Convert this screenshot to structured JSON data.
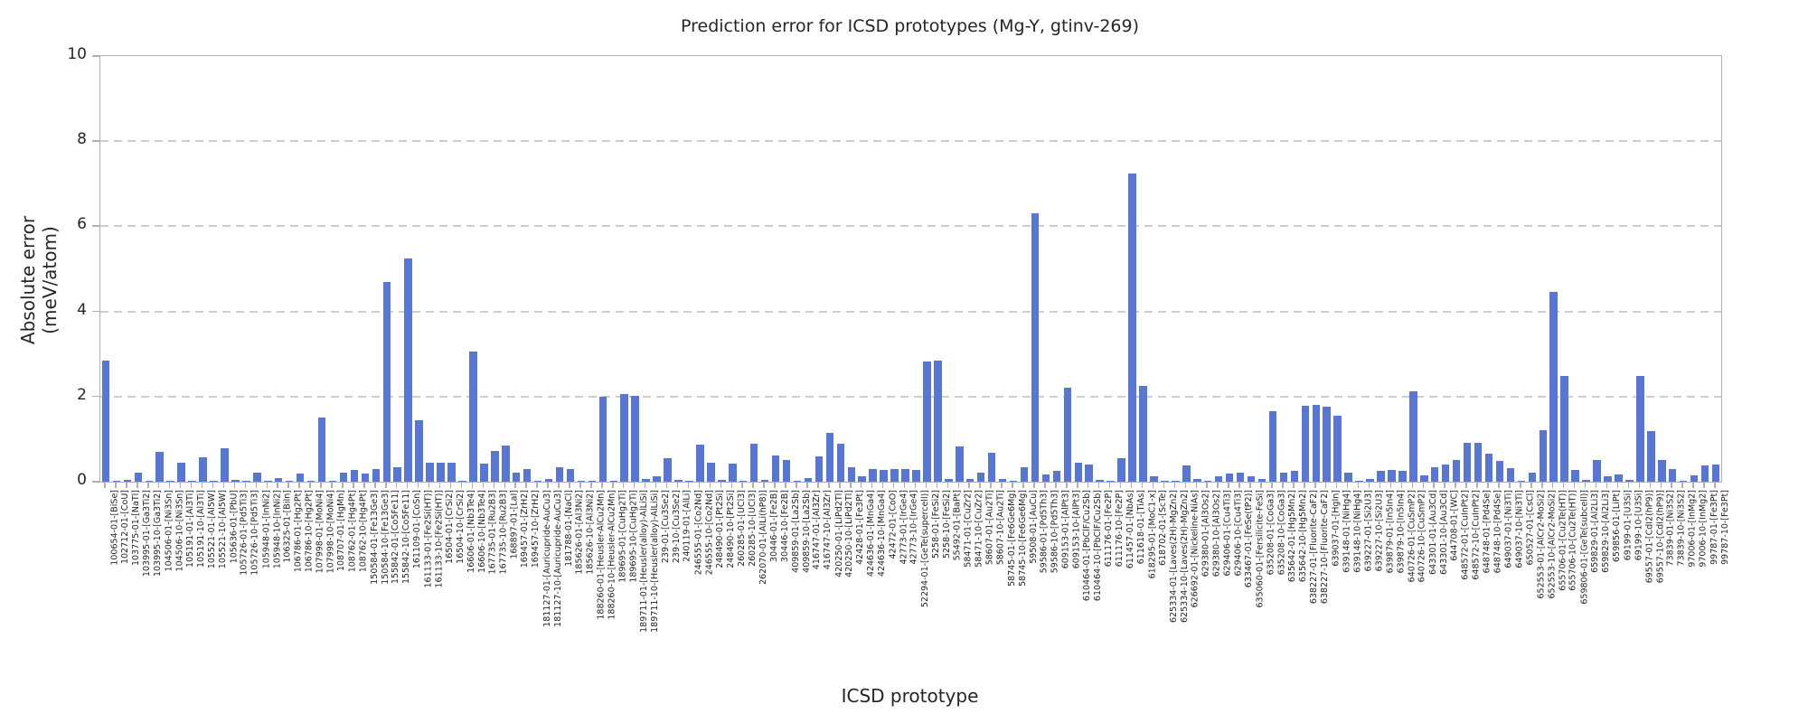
{
  "chart_data": {
    "type": "bar",
    "title": "Prediction error for ICSD prototypes (Mg-Y, gtinv-269)",
    "xlabel": "ICSD prototype",
    "ylabel": "Absolute error (meV/atom)",
    "ylim": [
      0,
      10
    ],
    "yticks": [
      0,
      2,
      4,
      6,
      8,
      10
    ],
    "grid": "dashed horizontal gridlines at y ticks",
    "legend_position": "none",
    "bar_color": "#5876d4",
    "grid_color": "#cdcdcd",
    "spine_color": "#b0b0b0",
    "categories": [
      "100654-01-[BiSe]",
      "102712-01-[CoU]",
      "103775-01-[NaTl]",
      "103995-01-[Ga3Ti2]",
      "103995-10-[Ga3Ti2]",
      "104506-01-[Ni3Sn]",
      "104506-10-[Ni3Sn]",
      "105191-01-[Al3Ti]",
      "105191-10-[Al3Ti]",
      "105521-01-[Al5W]",
      "105521-10-[Al5W]",
      "105636-01-[PbU]",
      "105726-01-[Pd5Ti3]",
      "105726-10-[Pd5Ti3]",
      "105948-01-[InNi2]",
      "105948-10-[InNi2]",
      "106325-01-[BiIn]",
      "106786-01-[Hg2Pt]",
      "106786-10-[Hg2Pt]",
      "107998-01-[MoNi4]",
      "107998-10-[MoNi4]",
      "108707-01-[HgMn]",
      "108762-01-[Hg4Pt]",
      "108762-10-[Hg4Pt]",
      "150584-01-[Fe13Ge3]",
      "150584-10-[Fe13Ge3]",
      "155842-01-[Co5Fe11]",
      "155842-10-[Co5Fe11]",
      "161109-01-[CoSn]",
      "161133-01-[Fe2Si(HT)]",
      "161133-10-[Fe2Si(HT)]",
      "16504-01-[CrSi2]",
      "16504-10-[CrSi2]",
      "16606-01-[Nb3Te4]",
      "16606-10-[Nb3Te4]",
      "167735-01-[Ru2B3]",
      "167735-10-[Ru2B3]",
      "168897-01-[LaI]",
      "169457-01-[ZrH2]",
      "169457-10-[ZrH2]",
      "181127-01-[Auricupride-AuCu3]",
      "181127-10-[Auricupride-AuCu3]",
      "181788-01-[NaCl]",
      "185626-01-[Al3Ni2]",
      "185626-10-[Al3Ni2]",
      "188260-01-[Heusler-AlCu2Mn]",
      "188260-10-[Heusler-AlCu2Mn]",
      "189695-01-[CuHg2Ti]",
      "189695-10-[CuHg2Ti]",
      "189711-01-[Heusler(alloy)-AlLiSi]",
      "189711-10-[Heusler(alloy)-AlLiSi]",
      "239-01-[Cu3Se2]",
      "239-10-[Cu3Se2]",
      "240119-01-[AlLi]",
      "246555-01-[Co2Nd]",
      "246555-10-[Co2Nd]",
      "248490-01-[Pt2Si]",
      "248490-10-[Pt2Si]",
      "260285-01-[UCl3]",
      "260285-10-[UCl3]",
      "262070-01-[AlLi(hP8)]",
      "30446-01-[Fe2B]",
      "30446-10-[Fe2B]",
      "409859-01-[La2Sb]",
      "409859-10-[La2Sb]",
      "416747-01-[Al3Zr]",
      "416747-10-[Al3Zr]",
      "420250-01-[LiPd2Tl]",
      "420250-10-[LiPd2Tl]",
      "42428-01-[Fe3Pt]",
      "424636-01-[MnGa4]",
      "424636-10-[MnGa4]",
      "42472-01-[CoO]",
      "42773-01-[IrGe4]",
      "42773-10-[IrGe4]",
      "52294-01-[GeTe(supercell)]",
      "5258-01-[FeSi2]",
      "5258-10-[FeSi2]",
      "55492-01-[BaPt]",
      "58471-01-[CuZr2]",
      "58471-10-[CuZr2]",
      "58607-01-[Au2Ti]",
      "58607-10-[Au2Ti]",
      "58745-01-[Fe6Ge6Mg]",
      "58745-10-[Fe6Ge6Mg]",
      "59508-01-[AuCu]",
      "59586-01-[Pd5Th3]",
      "59586-10-[Pd5Th3]",
      "609153-01-[AlPt3]",
      "609153-10-[AlPt3]",
      "610464-01-[PbClF/Cu2Sb]",
      "610464-10-[PbClF/Cu2Sb]",
      "611176-01-[Fe2P]",
      "611176-10-[Fe2P]",
      "611457-01-[NbAs]",
      "611618-01-[TiAs]",
      "618295-01-[MoC1-x]",
      "618702-01-[ScTe]",
      "625334-01-[Laves(2H)-MgZn2]",
      "625334-10-[Laves(2H)-MgZn2]",
      "626692-01-[Nickeline-NiAs]",
      "629380-01-[Al3Os2]",
      "629380-10-[Al3Os2]",
      "629406-01-[Cu4Ti3]",
      "629406-10-[Cu4Ti3]",
      "633467-01-[FeSe(tP2)]",
      "635060-01-[Fersilicite-FeSi]",
      "635208-01-[CoGa3]",
      "635208-10-[CoGa3]",
      "635642-01-[Hg5Mn2]",
      "635642-10-[Hg5Mn2]",
      "638227-01-[Fluorite-CaF2]",
      "638227-10-[Fluorite-CaF2]",
      "639037-01-[HgIn]",
      "639148-01-[NiHg4]",
      "639148-10-[NiHg4]",
      "639227-01-[Si2U3]",
      "639227-10-[Si2U3]",
      "639879-01-[In5In4]",
      "639879-10-[In5In4]",
      "640726-01-[CuSmP2]",
      "640726-10-[CuSmP2]",
      "643301-01-[Au3Cd]",
      "643301-10-[Au3Cd]",
      "644708-01-[WC]",
      "648572-01-[CuInPt2]",
      "648572-10-[CuInPt2]",
      "648748-01-[Pd4Se]",
      "648748-10-[Pd4Se]",
      "649037-01-[Ni3Ti]",
      "649037-10-[Ni3Ti]",
      "650527-01-[CsCl]",
      "652553-01-[AlCr2-MoSi2]",
      "652553-10-[AlCr2-MoSi2]",
      "655706-01-[Cu2Te(HT)]",
      "655706-10-[Cu2Te(HT)]",
      "659806-01-[GeTe(subcell)]",
      "659829-01-[Al2Li3]",
      "659829-10-[Al2Li3]",
      "659856-01-[LiPt]",
      "69199-01-[U3Si]",
      "69199-10-[U3Si]",
      "69557-01-[CdI2(hP9)]",
      "69557-10-[CdI2(hP9)]",
      "73839-01-[Ni3S2]",
      "73839-10-[Ni3S2]",
      "97006-01-[InMg2]",
      "97006-10-[InMg2]",
      "99787-01-[Fe3Pt]",
      "99787-10-[Fe3Pt]"
    ],
    "values": [
      2.85,
      0.02,
      0.05,
      0.22,
      0.02,
      0.7,
      0.02,
      0.45,
      0.02,
      0.57,
      0.02,
      0.78,
      0.05,
      0.02,
      0.22,
      0.02,
      0.08,
      0.02,
      0.2,
      0.02,
      1.5,
      0.02,
      0.22,
      0.28,
      0.2,
      0.3,
      4.7,
      0.33,
      5.25,
      1.45,
      0.45,
      0.45,
      0.45,
      0.02,
      3.05,
      0.42,
      0.72,
      0.85,
      0.22,
      0.3,
      0.02,
      0.07,
      0.35,
      0.3,
      0.02,
      0.02,
      2.0,
      0.02,
      2.05,
      2.02,
      0.06,
      0.12,
      0.55,
      0.05,
      0.03,
      0.88,
      0.45,
      0.04,
      0.42,
      0.02,
      0.9,
      0.04,
      0.62,
      0.5,
      0.02,
      0.08,
      0.6,
      1.15,
      0.9,
      0.35,
      0.12,
      0.3,
      0.27,
      0.3,
      0.3,
      0.28,
      2.82,
      2.85,
      0.07,
      0.82,
      0.07,
      0.22,
      0.68,
      0.07,
      0.02,
      0.35,
      6.3,
      0.18,
      0.25,
      2.2,
      0.45,
      0.4,
      0.05,
      0.02,
      0.55,
      7.25,
      2.26,
      0.12,
      0.02,
      0.02,
      0.38,
      0.07,
      0.02,
      0.12,
      0.2,
      0.22,
      0.13,
      0.07,
      1.65,
      0.22,
      0.25,
      1.78,
      1.8,
      1.76,
      1.55,
      0.22,
      0.02,
      0.07,
      0.25,
      0.28,
      0.25,
      2.12,
      0.15,
      0.35,
      0.4,
      0.5,
      0.92,
      0.92,
      0.65,
      0.48,
      0.32,
      0.02,
      0.22,
      1.22,
      4.45,
      2.48,
      0.28,
      0.05,
      0.5,
      0.12,
      0.18,
      0.05,
      2.48,
      1.18,
      0.5,
      0.3,
      0.02,
      0.15,
      0.38,
      0.4
    ]
  }
}
